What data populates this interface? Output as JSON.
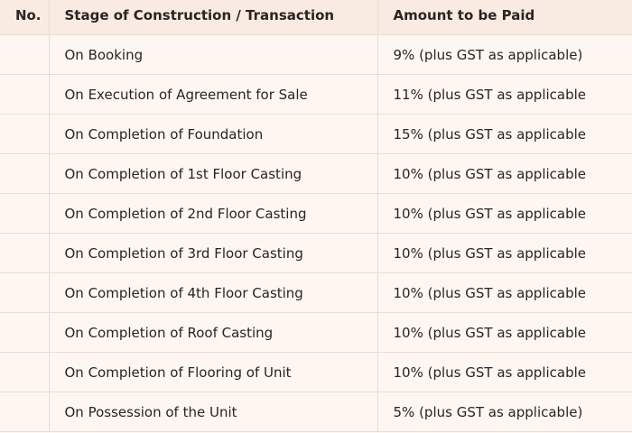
{
  "table": {
    "headers": {
      "no": "No.",
      "stage": "Stage of Construction / Transaction",
      "amount": "Amount to be Paid"
    },
    "rows": [
      {
        "stage": "On Booking",
        "amount": "9% (plus GST as applicable)"
      },
      {
        "stage": "On Execution of Agreement for Sale",
        "amount": "11% (plus GST as applicable"
      },
      {
        "stage": "On Completion of Foundation",
        "amount": "15% (plus GST as applicable"
      },
      {
        "stage": "On Completion of 1st Floor Casting",
        "amount": "10% (plus GST as applicable"
      },
      {
        "stage": "On Completion of 2nd Floor Casting",
        "amount": "10% (plus GST as applicable"
      },
      {
        "stage": "On Completion of 3rd Floor Casting",
        "amount": "10% (plus GST as applicable"
      },
      {
        "stage": "On Completion of 4th Floor Casting",
        "amount": "10% (plus GST as applicable"
      },
      {
        "stage": "On Completion of Roof Casting",
        "amount": "10% (plus GST as applicable"
      },
      {
        "stage": "On Completion of Flooring of Unit",
        "amount": "10% (plus GST as applicable"
      },
      {
        "stage": "On Possession of the Unit",
        "amount": "5% (plus GST as applicable)"
      }
    ]
  }
}
